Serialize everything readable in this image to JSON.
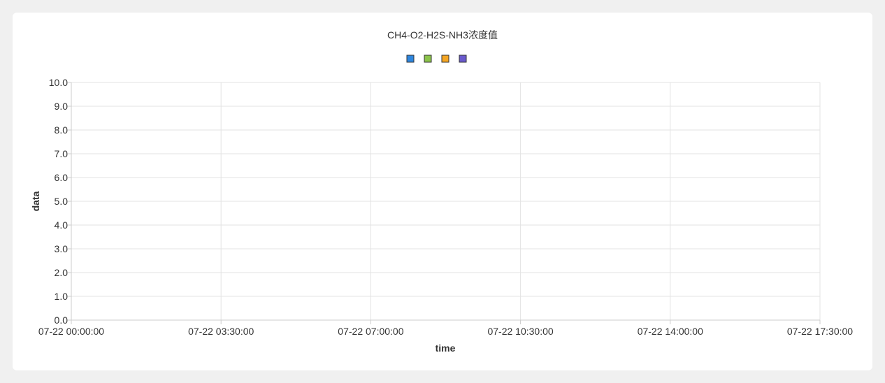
{
  "chart_data": {
    "type": "line",
    "title": "CH4-O2-H2S-NH3浓度值",
    "xlabel": "time",
    "ylabel": "data",
    "ylim": [
      0,
      10
    ],
    "y_ticks": [
      "0.0",
      "1.0",
      "2.0",
      "3.0",
      "4.0",
      "5.0",
      "6.0",
      "7.0",
      "8.0",
      "9.0",
      "10.0"
    ],
    "x_ticks": [
      "07-22 00:00:00",
      "07-22 03:30:00",
      "07-22 07:00:00",
      "07-22 10:30:00",
      "07-22 14:00:00",
      "07-22 17:30:00"
    ],
    "grid": true,
    "legend": "top-center",
    "series": [
      {
        "color": "#2e86de",
        "values": []
      },
      {
        "color": "#8bc34a",
        "values": []
      },
      {
        "color": "#f5a623",
        "values": []
      },
      {
        "color": "#6a5acd",
        "values": []
      }
    ]
  }
}
